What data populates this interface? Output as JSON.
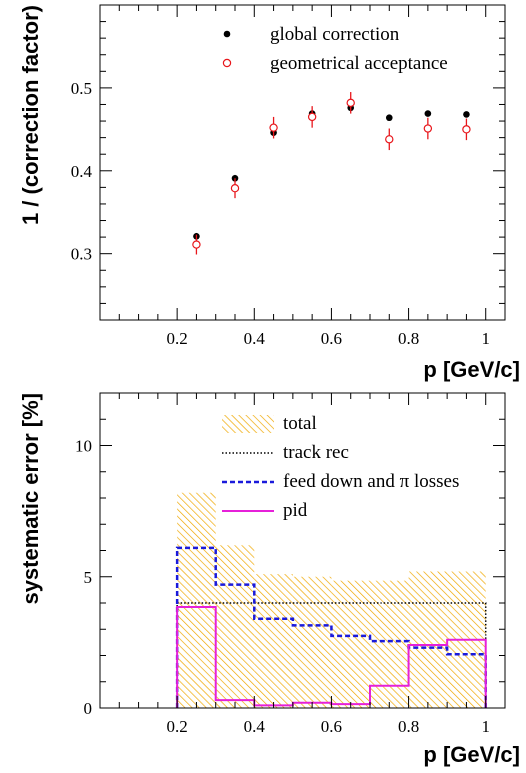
{
  "chart_data": [
    {
      "type": "scatter",
      "title": "",
      "xlabel": "p [GeV/c]",
      "ylabel": "1 / (correction factor)",
      "xlim": [
        0,
        1.05
      ],
      "ylim": [
        0.22,
        0.6
      ],
      "xticks": [
        0.2,
        0.4,
        0.6,
        0.8,
        1
      ],
      "xtick_labels": [
        "0.2",
        "0.4",
        "0.6",
        "0.8",
        "1"
      ],
      "yticks": [
        0.3,
        0.4,
        0.5
      ],
      "ytick_labels": [
        "0.3",
        "0.4",
        "0.5"
      ],
      "legend_position": "top-right",
      "grid": false,
      "series": [
        {
          "name": "global correction",
          "marker": "filled-circle",
          "color": "#000000",
          "x": [
            0.25,
            0.35,
            0.45,
            0.55,
            0.65,
            0.75,
            0.85,
            0.95
          ],
          "y": [
            0.321,
            0.391,
            0.446,
            0.469,
            0.476,
            0.464,
            0.469,
            0.468
          ],
          "err": [
            0.004,
            0.004,
            0.004,
            0.004,
            0.004,
            0.003,
            0.003,
            0.003
          ]
        },
        {
          "name": "geometrical acceptance",
          "marker": "open-circle",
          "color": "#e8161b",
          "x": [
            0.25,
            0.35,
            0.45,
            0.55,
            0.65,
            0.75,
            0.85,
            0.95
          ],
          "y": [
            0.311,
            0.379,
            0.452,
            0.465,
            0.482,
            0.438,
            0.451,
            0.45
          ],
          "err": [
            0.012,
            0.012,
            0.013,
            0.013,
            0.013,
            0.013,
            0.013,
            0.013
          ]
        }
      ]
    },
    {
      "type": "histogram",
      "title": "",
      "xlabel": "p [GeV/c]",
      "ylabel": "systematic error [%]",
      "xlim": [
        0,
        1.05
      ],
      "ylim": [
        0,
        12
      ],
      "xticks": [
        0.2,
        0.4,
        0.6,
        0.8,
        1
      ],
      "xtick_labels": [
        "0.2",
        "0.4",
        "0.6",
        "0.8",
        "1"
      ],
      "yticks": [
        0,
        5,
        10
      ],
      "ytick_labels": [
        "0",
        "5",
        "10"
      ],
      "legend_position": "top-right",
      "grid": false,
      "bin_edges": [
        0.2,
        0.3,
        0.4,
        0.5,
        0.6,
        0.7,
        0.8,
        0.9,
        1.0
      ],
      "series": [
        {
          "name": "total",
          "style": "hatched-fill",
          "color": "#f0a800",
          "values": [
            8.2,
            6.2,
            5.1,
            5.0,
            4.85,
            4.85,
            5.2,
            5.2
          ]
        },
        {
          "name": "track rec",
          "style": "dotted",
          "color": "#000000",
          "values": [
            4.0,
            4.0,
            4.0,
            4.0,
            4.0,
            4.0,
            4.0,
            4.0
          ]
        },
        {
          "name": "feed down and π losses",
          "style": "dashed",
          "color": "#1a1adb",
          "values": [
            6.1,
            4.7,
            3.4,
            3.15,
            2.75,
            2.55,
            2.3,
            2.05
          ]
        },
        {
          "name": "pid",
          "style": "solid",
          "color": "#e620d9",
          "values": [
            3.85,
            0.3,
            0.1,
            0.2,
            0.15,
            0.85,
            2.4,
            2.6
          ]
        }
      ]
    }
  ]
}
